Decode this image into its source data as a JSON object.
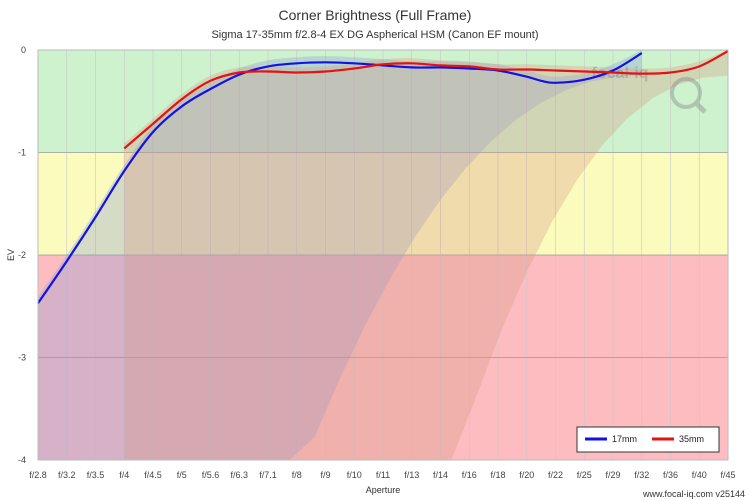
{
  "chart_data": {
    "type": "line",
    "title": "Corner Brightness (Full Frame)",
    "subtitle": "Sigma 17-35mm f/2.8-4 EX DG Aspherical HSM (Canon EF mount)",
    "xlabel": "Aperture",
    "ylabel": "EV",
    "categories": [
      "f/2.8",
      "f/3.2",
      "f/3.5",
      "f/4",
      "f/4.5",
      "f/5",
      "f/5.6",
      "f/6.3",
      "f/7.1",
      "f/8",
      "f/9",
      "f/10",
      "f/11",
      "f/13",
      "f/14",
      "f/16",
      "f/18",
      "f/20",
      "f/22",
      "f/25",
      "f/29",
      "f/32",
      "f/36",
      "f/40",
      "f/45"
    ],
    "ylim": [
      -4,
      0
    ],
    "yticks": [
      0,
      -1,
      -2,
      -3,
      -4
    ],
    "yticks_labels": [
      "0",
      "-1",
      "-2",
      "-3",
      "-4"
    ],
    "zones": [
      {
        "from": 0,
        "to": -1,
        "color": "#cdf2cd"
      },
      {
        "from": -1,
        "to": -2,
        "color": "#fbfbbd"
      },
      {
        "from": -2,
        "to": -4,
        "color": "#fdbcbf"
      }
    ],
    "series": [
      {
        "name": "17mm",
        "color": "#1212e6",
        "x": [
          0,
          1,
          2,
          3,
          4,
          5,
          6,
          7,
          8,
          9,
          10,
          11,
          12,
          13,
          14,
          15,
          16,
          17,
          17.5,
          18,
          19,
          20,
          21
        ],
        "values": [
          -2.47,
          -2.06,
          -1.63,
          -1.18,
          -0.8,
          -0.55,
          -0.38,
          -0.24,
          -0.16,
          -0.13,
          -0.12,
          -0.13,
          -0.15,
          -0.17,
          -0.17,
          -0.18,
          -0.2,
          -0.26,
          -0.3,
          -0.32,
          -0.29,
          -0.2,
          -0.03
        ]
      },
      {
        "name": "35mm",
        "color": "#e61212",
        "x": [
          3,
          4,
          5,
          6,
          7,
          8,
          9,
          10,
          11,
          12,
          13,
          14,
          15,
          16,
          17,
          18,
          19,
          20,
          21,
          22,
          23,
          24
        ],
        "values": [
          -0.96,
          -0.72,
          -0.48,
          -0.3,
          -0.22,
          -0.21,
          -0.22,
          -0.21,
          -0.18,
          -0.14,
          -0.13,
          -0.15,
          -0.16,
          -0.19,
          -0.19,
          -0.2,
          -0.21,
          -0.22,
          -0.23,
          -0.22,
          -0.16,
          -0.01
        ]
      }
    ],
    "legend": {
      "position": "bottom-right"
    },
    "credit": "www.focal-iq.com  v25144",
    "watermark": "focal-iq"
  }
}
